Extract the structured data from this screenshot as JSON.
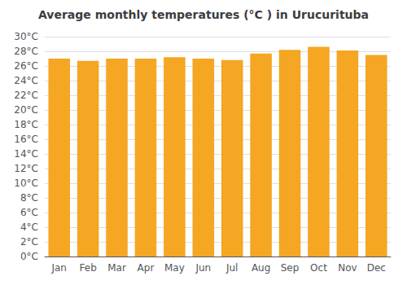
{
  "chart_data": {
    "type": "bar",
    "title": "Average monthly temperatures (°C ) in Urucurituba",
    "categories": [
      "Jan",
      "Feb",
      "Mar",
      "Apr",
      "May",
      "Jun",
      "Jul",
      "Aug",
      "Sep",
      "Oct",
      "Nov",
      "Dec"
    ],
    "values": [
      27.0,
      26.7,
      27.0,
      27.0,
      27.2,
      27.0,
      26.8,
      27.7,
      28.2,
      28.6,
      28.1,
      27.5
    ],
    "color": "#F5A623",
    "ylim": [
      0,
      30
    ],
    "yticks": [
      {
        "value": 0,
        "label": "0°C"
      },
      {
        "value": 2,
        "label": "2°C"
      },
      {
        "value": 4,
        "label": "4°C"
      },
      {
        "value": 6,
        "label": "6°C"
      },
      {
        "value": 8,
        "label": "8°C"
      },
      {
        "value": 10,
        "label": "10°C"
      },
      {
        "value": 12,
        "label": "12°C"
      },
      {
        "value": 14,
        "label": "14°C"
      },
      {
        "value": 16,
        "label": "16°C"
      },
      {
        "value": 18,
        "label": "18°C"
      },
      {
        "value": 20,
        "label": "20°C"
      },
      {
        "value": 22,
        "label": "22°C"
      },
      {
        "value": 24,
        "label": "24°C"
      },
      {
        "value": 26,
        "label": "26°C"
      },
      {
        "value": 28,
        "label": "28°C"
      },
      {
        "value": 30,
        "label": "30°C"
      }
    ],
    "grid": true
  }
}
